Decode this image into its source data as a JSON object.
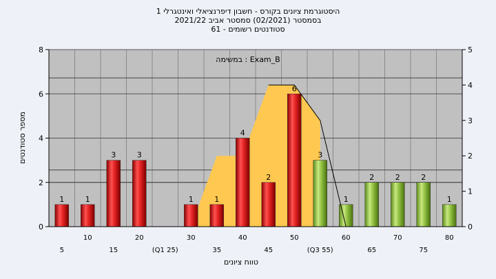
{
  "title": {
    "line1": "היסטוגרמת ציונים בקורס - חשבון דיפרנציאלי ואינטגרלי 1",
    "line2": "בסמסטר  (02/2021)  סמסטר אביב 2021/22",
    "line3": "סטודנטים רשומים - 61"
  },
  "chart_data": {
    "type": "bar",
    "annotation": "במשימה : Exam_B",
    "xlabel": "טווח ציונים",
    "ylabel": "מספר סטודנטים",
    "ylim": [
      0,
      8
    ],
    "y_ticks": [
      0,
      2,
      4,
      6,
      8
    ],
    "y2lim": [
      0,
      5
    ],
    "y2_ticks": [
      0,
      1,
      2,
      3,
      4,
      5
    ],
    "categories": [
      "5",
      "10",
      "15",
      "20",
      "25",
      "30",
      "35",
      "40",
      "45",
      "50",
      "55",
      "60",
      "65",
      "70",
      "75",
      "80"
    ],
    "tick_labels": [
      "5",
      "10",
      "15",
      "20",
      "(Q1 25)",
      "30",
      "35",
      "40",
      "45",
      "50",
      "(Q3 55)",
      "60",
      "65",
      "70",
      "75",
      "80"
    ],
    "values": [
      1,
      1,
      3,
      3,
      0,
      1,
      1,
      4,
      2,
      6,
      3,
      1,
      2,
      2,
      2,
      1
    ],
    "value_labels": [
      "1",
      "1",
      "3",
      "3",
      "",
      "1",
      "1",
      "4",
      "2",
      "6",
      "3",
      "1",
      "2",
      "2",
      "2",
      "1"
    ],
    "bar_colors": [
      "red",
      "red",
      "red",
      "red",
      "red",
      "red",
      "red",
      "red",
      "red",
      "red",
      "green",
      "green",
      "green",
      "green",
      "green",
      "green"
    ],
    "area_series": {
      "x": [
        "30",
        "35",
        "40",
        "45",
        "50",
        "55"
      ],
      "values": [
        0,
        2,
        2,
        4,
        4,
        3
      ]
    },
    "black_line": {
      "x": [
        "45",
        "50",
        "55",
        "60"
      ],
      "values": [
        4,
        4,
        3,
        0
      ]
    },
    "reference_lines_right_axis": [
      1.25,
      1.6,
      4.2
    ],
    "colors": {
      "plot_bg": "#c0c0c0",
      "red": "#e02020",
      "green": "#90c040",
      "area": "#ffc850",
      "line": "#000000"
    },
    "grid": true,
    "legend": "none"
  }
}
